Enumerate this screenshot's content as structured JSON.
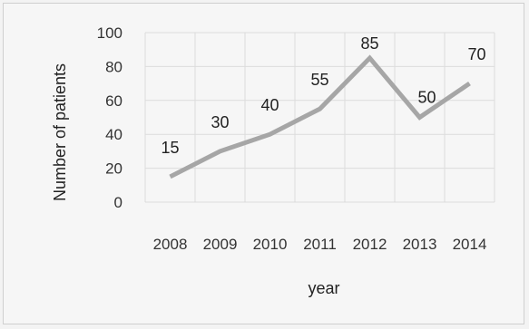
{
  "chart_data": {
    "type": "line",
    "categories": [
      "2008",
      "2009",
      "2010",
      "2011",
      "2012",
      "2013",
      "2014"
    ],
    "series": [
      {
        "values": [
          15,
          30,
          40,
          55,
          85,
          50,
          70
        ]
      }
    ],
    "data_labels": [
      "15",
      "30",
      "40",
      "55",
      "85",
      "50",
      "70"
    ],
    "y_ticks": [
      "0",
      "20",
      "40",
      "60",
      "80",
      "100"
    ],
    "xlabel": "year",
    "ylabel": "Number of patients",
    "ylim": [
      0,
      100
    ],
    "grid": true,
    "legend": "none",
    "line_color": "#a6a6a6",
    "grid_color": "#dcdcdc"
  }
}
